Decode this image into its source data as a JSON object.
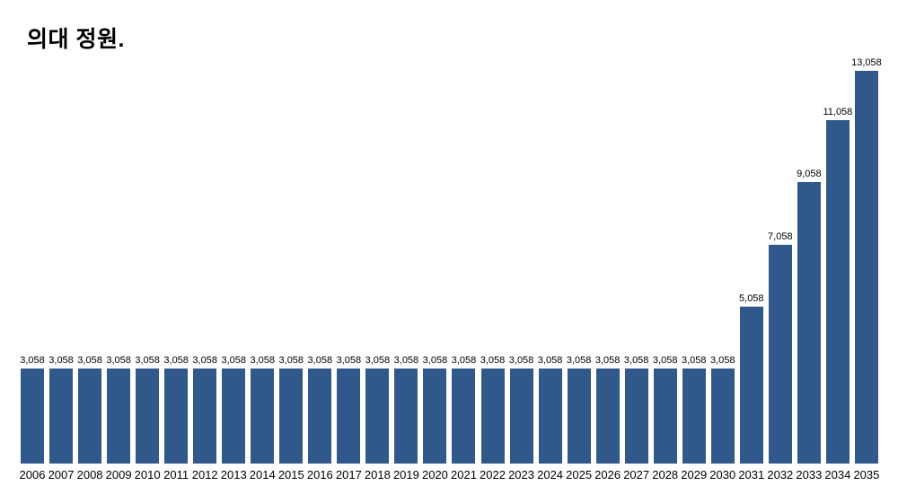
{
  "title": "의대 정원.",
  "colors": {
    "background": "#FFFFFF",
    "bar": "#30588B",
    "text": "#000000"
  },
  "chart_data": {
    "type": "bar",
    "title": "의대 정원.",
    "xlabel": "",
    "ylabel": "",
    "ylim": [
      0,
      13058
    ],
    "grid": false,
    "legend": "none",
    "axes_visible": false,
    "value_labels_visible": true,
    "value_label_format": "thousands-comma",
    "bar_color": "#30588B",
    "categories": [
      "2006",
      "2007",
      "2008",
      "2009",
      "2010",
      "2011",
      "2012",
      "2013",
      "2014",
      "2015",
      "2016",
      "2017",
      "2018",
      "2019",
      "2020",
      "2021",
      "2022",
      "2023",
      "2024",
      "2025",
      "2026",
      "2027",
      "2028",
      "2029",
      "2030",
      "2031",
      "2032",
      "2033",
      "2034",
      "2035"
    ],
    "values": [
      3058,
      3058,
      3058,
      3058,
      3058,
      3058,
      3058,
      3058,
      3058,
      3058,
      3058,
      3058,
      3058,
      3058,
      3058,
      3058,
      3058,
      3058,
      3058,
      3058,
      3058,
      3058,
      3058,
      3058,
      3058,
      5058,
      7058,
      9058,
      11058,
      13058
    ]
  }
}
